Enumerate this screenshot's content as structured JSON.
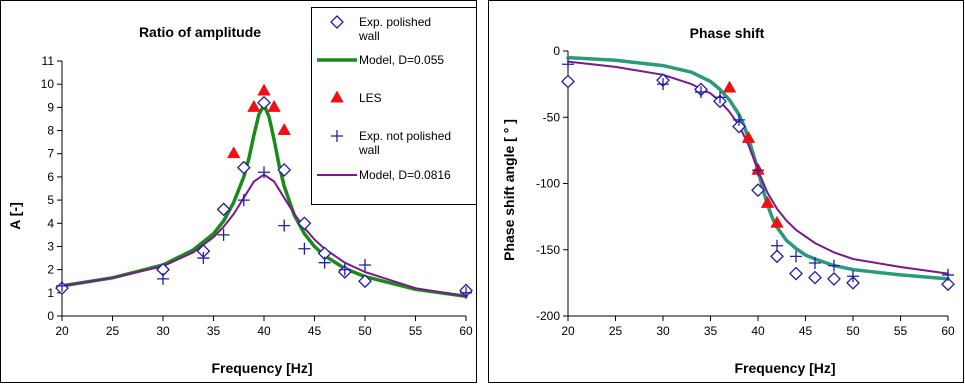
{
  "chart_data": [
    {
      "type": "line",
      "title": "Ratio of amplitude",
      "xlabel": "Frequency [Hz]",
      "ylabel": "A [-]",
      "xlim": [
        20,
        60
      ],
      "ylim": [
        0,
        11
      ],
      "xticks": [
        20,
        25,
        30,
        35,
        40,
        45,
        50,
        55,
        60
      ],
      "yticks": [
        0,
        1,
        2,
        3,
        4,
        5,
        6,
        7,
        8,
        9,
        10,
        11
      ],
      "grid": false,
      "legend_placement": "top-right",
      "legend": [
        "Exp. polished wall",
        "Model, D=0.055",
        "LES",
        "Exp. not polished wall",
        "Model, D=0.0816"
      ],
      "series": [
        {
          "name": "Exp. polished wall",
          "kind": "scatter",
          "marker": "diamond",
          "color": "#1f1f9e",
          "x": [
            20,
            30,
            34,
            36,
            38,
            40,
            42,
            44,
            46,
            48,
            50,
            60
          ],
          "y": [
            1.2,
            2.0,
            2.8,
            4.6,
            6.4,
            9.2,
            6.3,
            4.0,
            2.7,
            1.9,
            1.5,
            1.1
          ]
        },
        {
          "name": "Model, D=0.055",
          "kind": "line",
          "color": "#1a8a1a",
          "width": 3.5,
          "x": [
            20,
            25,
            30,
            33,
            35,
            36,
            37,
            38,
            38.5,
            39,
            39.5,
            40,
            40.5,
            41,
            41.5,
            42,
            43,
            44,
            45,
            46,
            48,
            50,
            55,
            60
          ],
          "y": [
            1.3,
            1.65,
            2.2,
            2.85,
            3.55,
            4.1,
            4.9,
            6.0,
            6.8,
            7.8,
            8.7,
            9.1,
            8.6,
            7.6,
            6.5,
            5.6,
            4.35,
            3.55,
            3.0,
            2.6,
            2.05,
            1.7,
            1.15,
            0.85
          ]
        },
        {
          "name": "LES",
          "kind": "scatter",
          "marker": "triangle",
          "color": "#ee1111",
          "x": [
            37,
            39,
            40,
            41,
            42
          ],
          "y": [
            7.0,
            9.0,
            9.7,
            9.0,
            8.0
          ]
        },
        {
          "name": "Exp. not polished wall",
          "kind": "scatter",
          "marker": "plus",
          "color": "#1f1fa8",
          "x": [
            20,
            30,
            34,
            36,
            38,
            40,
            42,
            44,
            46,
            48,
            50,
            60
          ],
          "y": [
            1.3,
            1.6,
            2.5,
            3.5,
            5.0,
            6.2,
            3.9,
            2.9,
            2.3,
            2.0,
            2.2,
            1.0
          ]
        },
        {
          "name": "Model, D=0.0816",
          "kind": "line",
          "color": "#7a1a8a",
          "width": 2,
          "x": [
            20,
            25,
            30,
            33,
            35,
            36,
            37,
            38,
            39,
            40,
            41,
            42,
            43,
            44,
            45,
            46,
            48,
            50,
            55,
            60
          ],
          "y": [
            1.3,
            1.65,
            2.15,
            2.75,
            3.4,
            3.85,
            4.4,
            5.1,
            5.8,
            6.1,
            5.8,
            5.1,
            4.4,
            3.8,
            3.3,
            2.9,
            2.3,
            1.9,
            1.2,
            0.85
          ]
        }
      ]
    },
    {
      "type": "line",
      "title": "Phase shift",
      "xlabel": "Frequency [Hz]",
      "ylabel": "Phase shift angle [ ° ]",
      "xlim": [
        20,
        60
      ],
      "ylim": [
        -200,
        0
      ],
      "xticks": [
        20,
        25,
        30,
        35,
        40,
        45,
        50,
        55,
        60
      ],
      "yticks": [
        0,
        -50,
        -100,
        -150,
        -200
      ],
      "grid": false,
      "series": [
        {
          "name": "Exp. polished wall",
          "kind": "scatter",
          "marker": "diamond",
          "color": "#1f1f9e",
          "x": [
            20,
            30,
            34,
            36,
            38,
            40,
            42,
            44,
            46,
            48,
            50,
            60
          ],
          "y": [
            -23,
            -22,
            -29,
            -38,
            -57,
            -105,
            -155,
            -168,
            -171,
            -172,
            -175,
            -176
          ]
        },
        {
          "name": "Model, D=0.055",
          "kind": "line",
          "color": "#2a9a7a",
          "width": 3.5,
          "x": [
            20,
            25,
            30,
            33,
            35,
            36,
            37,
            38,
            38.5,
            39,
            39.5,
            40,
            40.5,
            41,
            41.5,
            42,
            43,
            44,
            45,
            46,
            48,
            50,
            55,
            60
          ],
          "y": [
            -5,
            -7,
            -11,
            -16,
            -23,
            -29,
            -37,
            -48,
            -56,
            -66,
            -78,
            -90,
            -104,
            -116,
            -126,
            -133,
            -143,
            -149,
            -154,
            -157,
            -162,
            -165,
            -169,
            -172
          ]
        },
        {
          "name": "LES",
          "kind": "scatter",
          "marker": "triangle",
          "color": "#ee1111",
          "x": [
            37,
            39,
            40,
            41,
            42
          ],
          "y": [
            -28,
            -66,
            -90,
            -115,
            -130
          ]
        },
        {
          "name": "Exp. not polished wall",
          "kind": "scatter",
          "marker": "plus",
          "color": "#1f1fa8",
          "x": [
            20,
            30,
            34,
            36,
            38,
            40,
            42,
            44,
            46,
            48,
            50,
            60
          ],
          "y": [
            -10,
            -25,
            -31,
            -35,
            -52,
            -90,
            -147,
            -155,
            -160,
            -162,
            -170,
            -169
          ]
        },
        {
          "name": "Model, D=0.0816",
          "kind": "line",
          "color": "#7a1a8a",
          "width": 2,
          "x": [
            20,
            25,
            30,
            33,
            35,
            36,
            37,
            38,
            39,
            40,
            41,
            42,
            43,
            44,
            45,
            46,
            48,
            50,
            55,
            60
          ],
          "y": [
            -8,
            -12,
            -18,
            -25,
            -32,
            -38,
            -46,
            -56,
            -71,
            -90,
            -107,
            -119,
            -128,
            -135,
            -140,
            -145,
            -152,
            -157,
            -163,
            -168
          ]
        }
      ]
    }
  ]
}
